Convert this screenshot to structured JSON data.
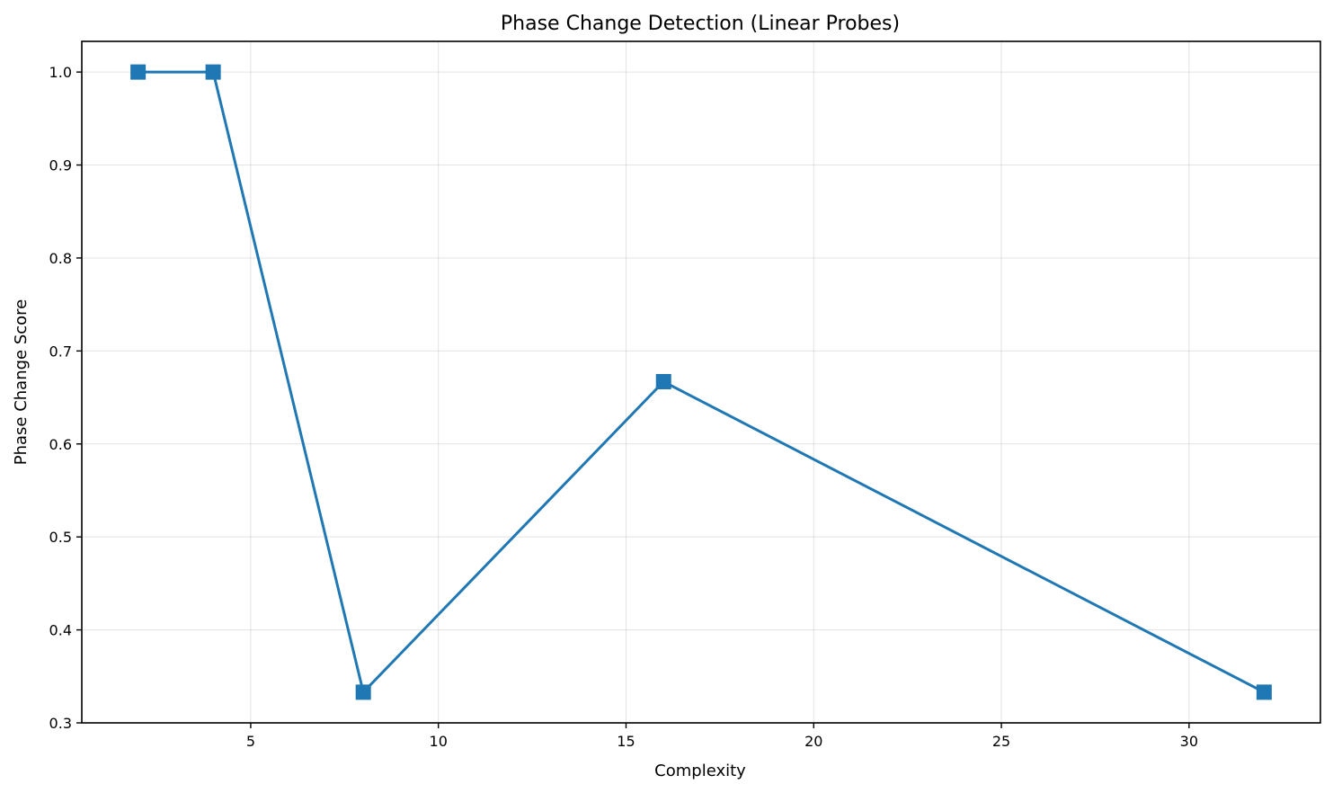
{
  "chart_data": {
    "type": "line",
    "title": "Phase Change Detection (Linear Probes)",
    "xlabel": "Complexity",
    "ylabel": "Phase Change Score",
    "xlim": [
      0.5,
      33.5
    ],
    "ylim": [
      0.3,
      1.033
    ],
    "xticks": [
      5,
      10,
      15,
      20,
      25,
      30
    ],
    "xtick_labels": [
      "5",
      "10",
      "15",
      "20",
      "25",
      "30"
    ],
    "yticks": [
      0.3,
      0.4,
      0.5,
      0.6,
      0.7,
      0.8,
      0.9,
      1.0
    ],
    "ytick_labels": [
      "0.3",
      "0.4",
      "0.5",
      "0.6",
      "0.7",
      "0.8",
      "0.9",
      "1.0"
    ],
    "grid": true,
    "series": [
      {
        "color": "#1f77b4",
        "marker": "square",
        "x": [
          2,
          4,
          8,
          16,
          32
        ],
        "y": [
          1.0,
          1.0,
          0.333,
          0.667,
          0.333
        ]
      }
    ]
  }
}
